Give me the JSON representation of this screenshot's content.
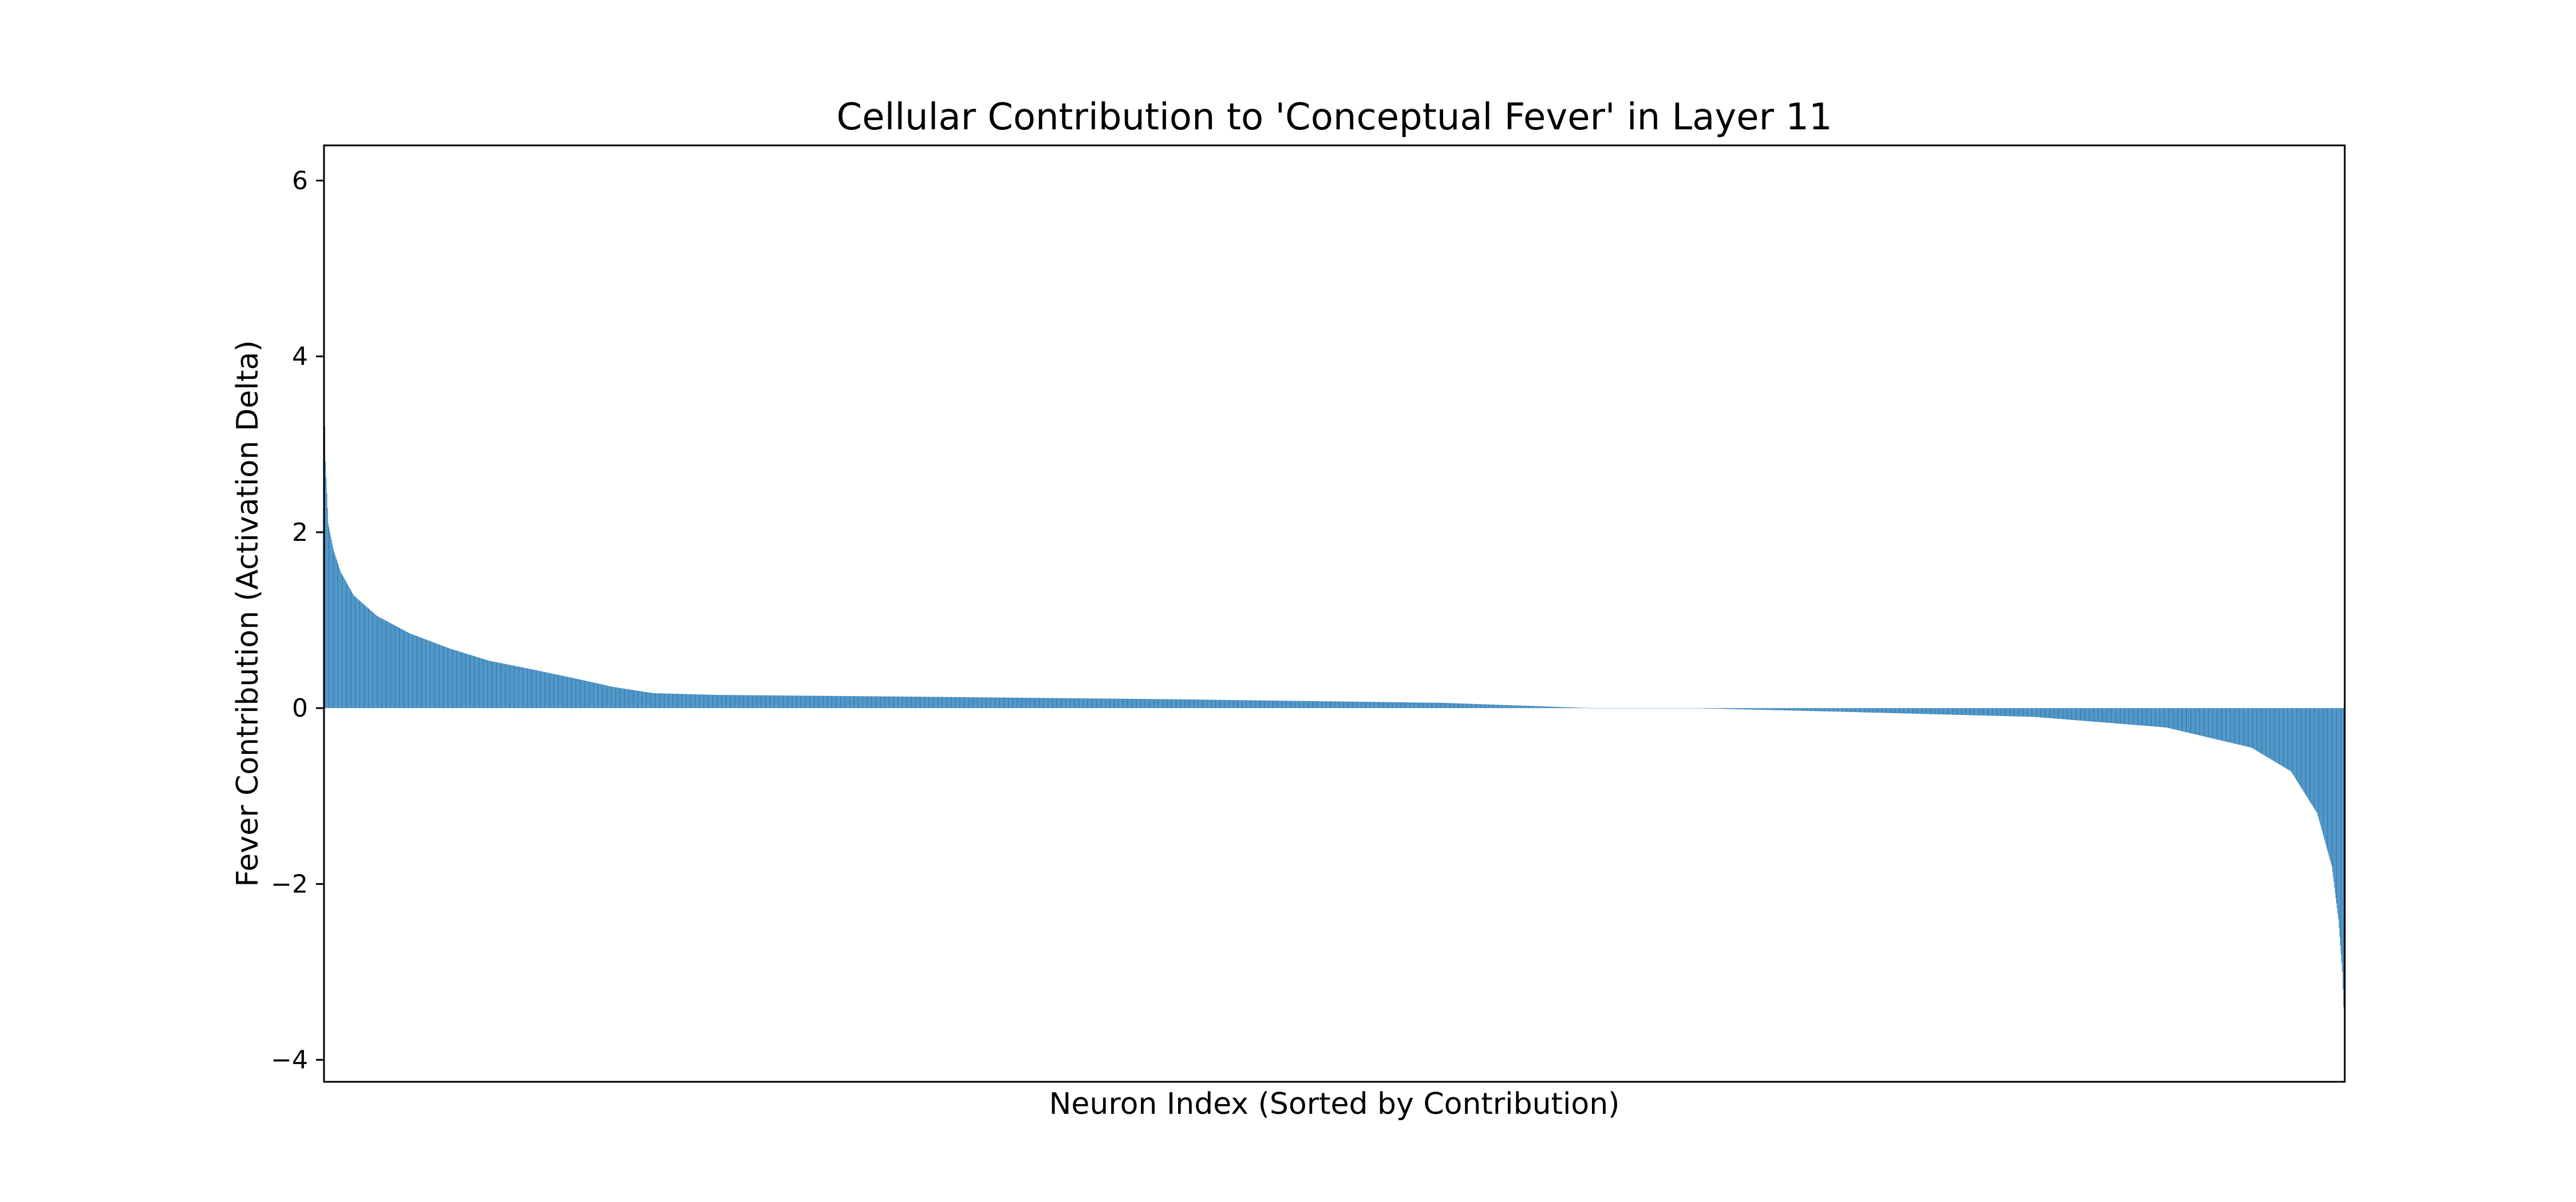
{
  "chart_data": {
    "type": "bar",
    "title": "Cellular Contribution to 'Conceptual Fever' in Layer 11",
    "xlabel": "Neuron Index (Sorted by Contribution)",
    "ylabel": "Fever Contribution (Activation Delta)",
    "ylim": [
      -4.25,
      6.4
    ],
    "xlim": [
      0,
      3072
    ],
    "x_ticks_visible": false,
    "yticks": [
      {
        "value": 6,
        "label": "6"
      },
      {
        "value": 4,
        "label": "4"
      },
      {
        "value": 2,
        "label": "2"
      },
      {
        "value": 0,
        "label": "0"
      },
      {
        "value": -2,
        "label": "−2"
      },
      {
        "value": -4,
        "label": "−4"
      }
    ],
    "grid": false,
    "legend": "none",
    "n_bars": 3072,
    "sorted": "descending",
    "max_value": 3.6,
    "min_value": -3.6,
    "bar_color": "#1f77b4",
    "bar_edge_color": "#ffffff",
    "profile_points": [
      {
        "rank": 0,
        "value": 3.6
      },
      {
        "rank": 2,
        "value": 2.8
      },
      {
        "rank": 6,
        "value": 2.1
      },
      {
        "rank": 14,
        "value": 1.8
      },
      {
        "rank": 25,
        "value": 1.55
      },
      {
        "rank": 45,
        "value": 1.28
      },
      {
        "rank": 80,
        "value": 1.05
      },
      {
        "rank": 130,
        "value": 0.85
      },
      {
        "rank": 190,
        "value": 0.68
      },
      {
        "rank": 250,
        "value": 0.54
      },
      {
        "rank": 310,
        "value": 0.45
      },
      {
        "rank": 380,
        "value": 0.34
      },
      {
        "rank": 440,
        "value": 0.24
      },
      {
        "rank": 500,
        "value": 0.17
      },
      {
        "rank": 600,
        "value": 0.15
      },
      {
        "rank": 900,
        "value": 0.13
      },
      {
        "rank": 1300,
        "value": 0.1
      },
      {
        "rank": 1700,
        "value": 0.06
      },
      {
        "rank": 1930,
        "value": 0.0
      },
      {
        "rank": 2075,
        "value": 0.0
      },
      {
        "rank": 2300,
        "value": -0.04
      },
      {
        "rank": 2600,
        "value": -0.1
      },
      {
        "rank": 2800,
        "value": -0.22
      },
      {
        "rank": 2930,
        "value": -0.45
      },
      {
        "rank": 2990,
        "value": -0.72
      },
      {
        "rank": 3030,
        "value": -1.2
      },
      {
        "rank": 3052,
        "value": -1.8
      },
      {
        "rank": 3062,
        "value": -2.4
      },
      {
        "rank": 3068,
        "value": -3.0
      },
      {
        "rank": 3071,
        "value": -3.6
      }
    ]
  }
}
